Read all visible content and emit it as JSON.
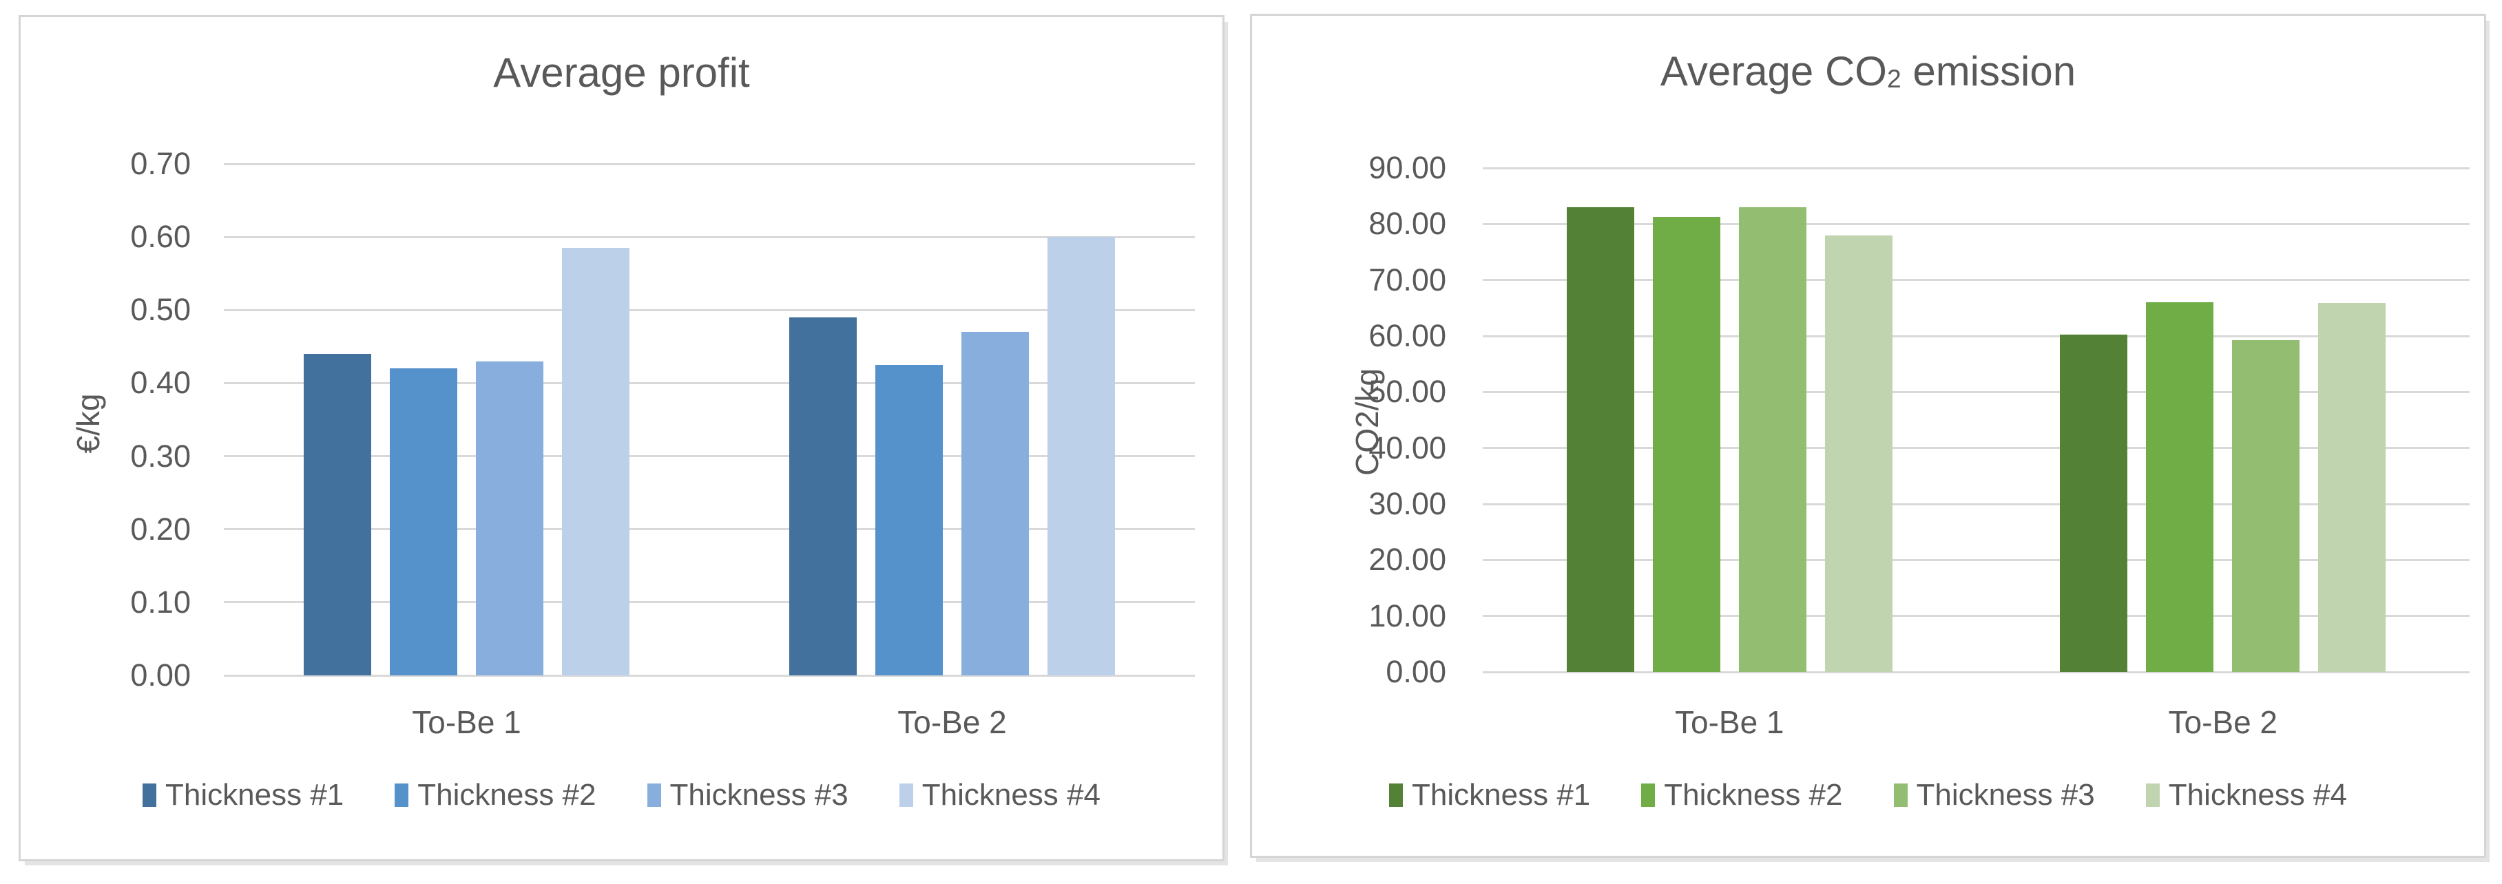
{
  "styles": {
    "background": "#FFFFFF",
    "card_border_color": "#D5D5D5",
    "text_color": "#595959",
    "gridline_color": "#D9D9D9"
  },
  "chart_data": [
    {
      "type": "bar",
      "title": "Average profit",
      "title_parts": {
        "prefix": "Average profit",
        "subscript": "",
        "suffix": ""
      },
      "ylabel": "€/kg",
      "categories": [
        "To-Be 1",
        "To-Be 2"
      ],
      "series": [
        {
          "name": "Thickness #1",
          "color": "#41719C",
          "values": [
            0.44,
            0.49
          ]
        },
        {
          "name": "Thickness #2",
          "color": "#5591CA",
          "values": [
            0.42,
            0.425
          ]
        },
        {
          "name": "Thickness #3",
          "color": "#87AEDD",
          "values": [
            0.43,
            0.47
          ]
        },
        {
          "name": "Thickness #4",
          "color": "#BDD0EA",
          "values": [
            0.585,
            0.6
          ]
        }
      ],
      "ylim": [
        0,
        0.7
      ],
      "ytick_step": 0.1,
      "ytick_labels": [
        "0.00",
        "0.10",
        "0.20",
        "0.30",
        "0.40",
        "0.50",
        "0.60",
        "0.70"
      ],
      "grid": true,
      "legend_position": "bottom"
    },
    {
      "type": "bar",
      "title": "Average CO2 emission",
      "title_parts": {
        "prefix": "Average CO",
        "subscript": "2",
        "suffix": " emission"
      },
      "ylabel": "CO2/kg",
      "categories": [
        "To-Be 1",
        "To-Be 2"
      ],
      "series": [
        {
          "name": "Thickness #1",
          "color": "#538135",
          "values": [
            83.0,
            60.3
          ]
        },
        {
          "name": "Thickness #2",
          "color": "#70AD47",
          "values": [
            81.3,
            66.0
          ]
        },
        {
          "name": "Thickness #3",
          "color": "#93BE71",
          "values": [
            83.0,
            59.3
          ]
        },
        {
          "name": "Thickness #4",
          "color": "#C0D5AF",
          "values": [
            77.9,
            65.9
          ]
        }
      ],
      "ylim": [
        0,
        90
      ],
      "ytick_step": 10,
      "ytick_labels": [
        "0.00",
        "10.00",
        "20.00",
        "30.00",
        "40.00",
        "50.00",
        "60.00",
        "70.00",
        "80.00",
        "90.00"
      ],
      "grid": true,
      "legend_position": "bottom"
    }
  ]
}
